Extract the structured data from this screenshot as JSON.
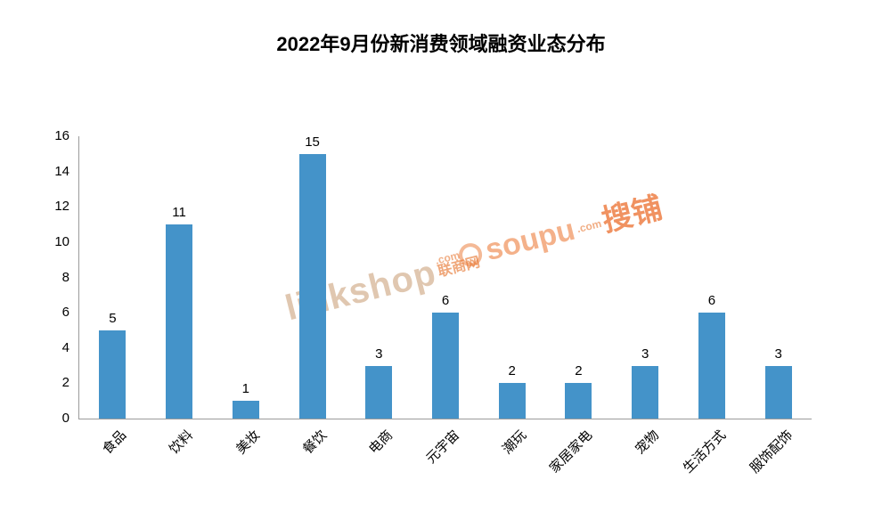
{
  "title": "2022年9月份新消费领域融资业态分布",
  "chart_data": {
    "type": "bar",
    "title": "2022年9月份新消费领域融资业态分布",
    "categories": [
      "食品",
      "饮料",
      "美妆",
      "餐饮",
      "电商",
      "元宇宙",
      "潮玩",
      "家居家电",
      "宠物",
      "生活方式",
      "服饰配饰"
    ],
    "values": [
      5,
      11,
      1,
      15,
      3,
      6,
      2,
      2,
      3,
      6,
      3
    ],
    "xlabel": "",
    "ylabel": "",
    "ylim": [
      0,
      16
    ],
    "yticks": [
      0,
      2,
      4,
      6,
      8,
      10,
      12,
      14,
      16
    ],
    "bar_color": "#4493c9",
    "axis_color": "#9b9b9b",
    "grid": false,
    "legend": false,
    "data_labels": true
  },
  "watermarks": {
    "linkshop": {
      "main": "linkshop",
      "dotcom": ".com",
      "cn": "联商网"
    },
    "soupu": {
      "main": "soupu",
      "dotcom": ".com",
      "cn": "搜铺"
    }
  }
}
